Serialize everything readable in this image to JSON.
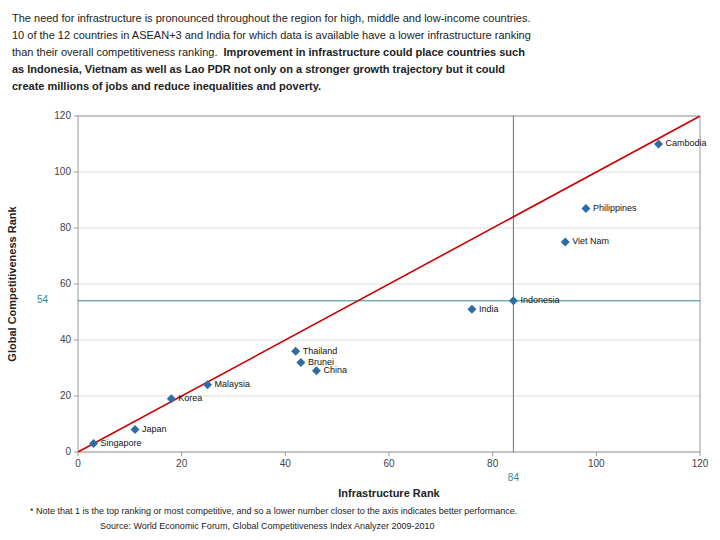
{
  "chart_data": {
    "type": "scatter",
    "annotations": [
      [
        "The need for infrastructure is pronounced throughout the region for high, middle and low-income countries."
      ],
      [
        "10 of the 12 countries in ASEAN+3 and India for which data is available have a lower infrastructure ranking"
      ],
      [
        "than their overall competitiveness ranking.",
        "  Improvement in infrastructure could place countries such"
      ],
      [
        "as Indonesia, Vietnam as well as Lao PDR not only on a stronger growth trajectory but it could"
      ],
      [
        "create millions of jobs and reduce inequalities and poverty."
      ]
    ],
    "xlabel": "Infrastructure Rank",
    "ylabel": "Global Competitiveness Rank",
    "x": [
      3,
      11,
      18,
      25,
      46,
      43,
      42,
      76,
      84,
      94,
      98,
      112
    ],
    "values": [
      3,
      8,
      19,
      24,
      29,
      32,
      36,
      51,
      54,
      75,
      87,
      110
    ],
    "labels": [
      "Singapore",
      "Japan",
      "Korea",
      "Malaysia",
      "China",
      "Brunei",
      "Thailand",
      "India",
      "Indonesia",
      "Viet Nam",
      "Philippines",
      "Cambodia"
    ],
    "color": "#2e6da4",
    "marker": "diamond",
    "xlim": [
      0,
      120
    ],
    "ylim": [
      0,
      120
    ],
    "xticks": [
      0,
      20,
      40,
      60,
      80,
      100,
      120
    ],
    "yticks": [
      0,
      20,
      40,
      60,
      80,
      100,
      120
    ],
    "grid": "y",
    "diagonal": {
      "x": [
        0,
        120
      ],
      "values": [
        0,
        120
      ],
      "color": "#cc0000"
    },
    "reference_lines": [
      {
        "axis": "y",
        "value": 54,
        "label": "54",
        "color": "#2e8b8b"
      },
      {
        "axis": "x",
        "value": 84,
        "label": "84",
        "color": "#2e8b8b"
      }
    ],
    "footnotes": [
      "* Note that 1 is the top ranking or most competitive, and so a lower number closer to the axis indicates better performance.",
      "Source: World Economic Forum, Global Competitiveness Index Analyzer 2009-2010"
    ]
  }
}
